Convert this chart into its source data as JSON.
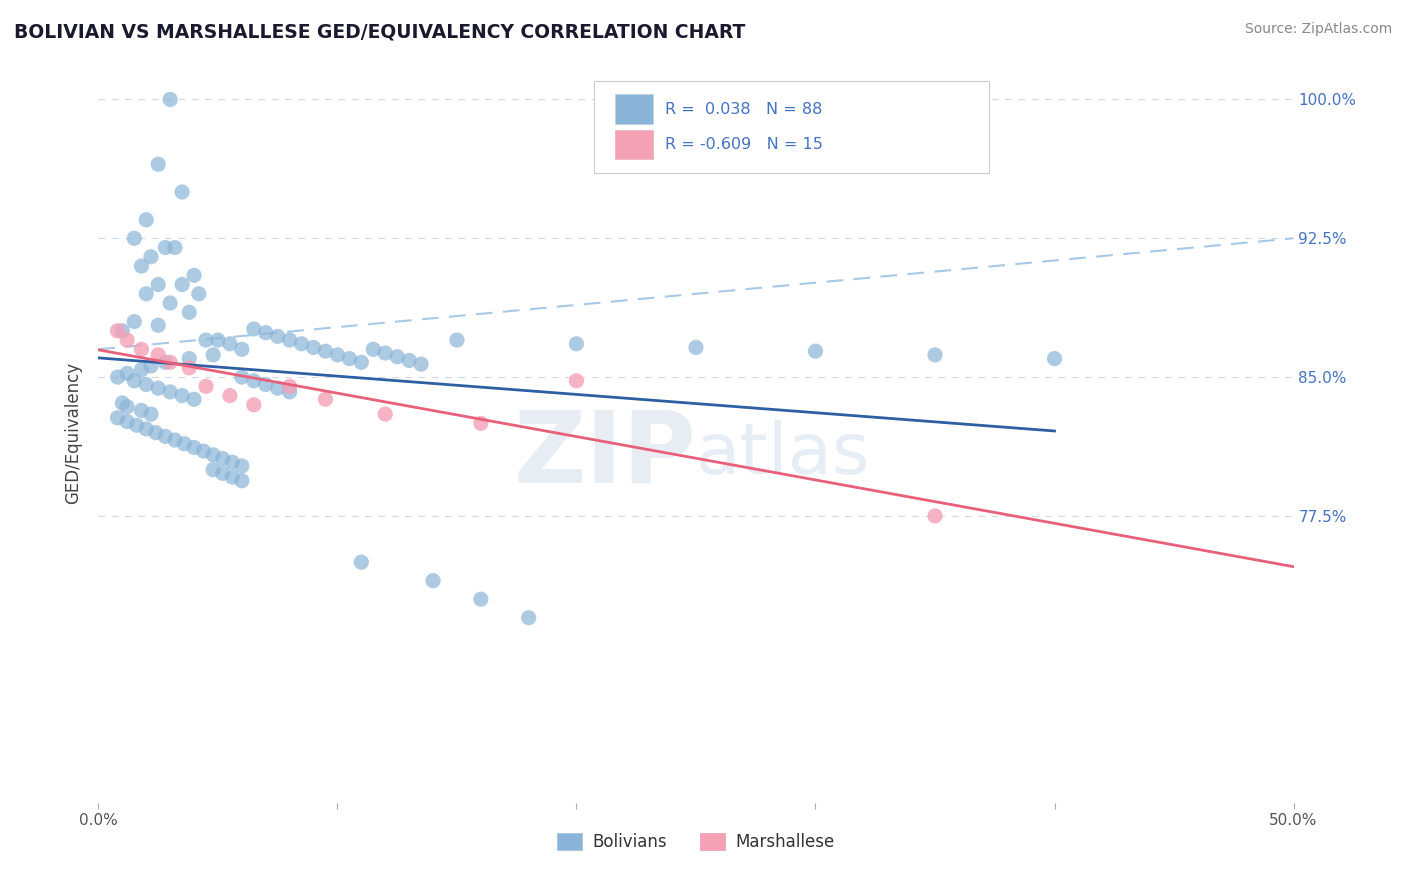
{
  "title": "BOLIVIAN VS MARSHALLESE GED/EQUIVALENCY CORRELATION CHART",
  "source": "Source: ZipAtlas.com",
  "ylabel": "GED/Equivalency",
  "watermark": "ZIPatlas",
  "xlim": [
    0.0,
    0.5
  ],
  "ylim": [
    0.62,
    1.02
  ],
  "xtick_positions": [
    0.0,
    0.1,
    0.2,
    0.3,
    0.4,
    0.5
  ],
  "xticklabels": [
    "0.0%",
    "",
    "",
    "",
    "",
    "50.0%"
  ],
  "ytick_positions": [
    0.775,
    0.85,
    0.925,
    1.0
  ],
  "yticklabels": [
    "77.5%",
    "85.0%",
    "92.5%",
    "100.0%"
  ],
  "bolivian_color": "#8ab4d8",
  "marshallese_color": "#f4a0b5",
  "bolivian_line_color": "#2e5fa3",
  "marshallese_line_color": "#e8607a",
  "dashed_line_color": "#a8c8e8",
  "grid_color": "#d0d8e8",
  "title_color": "#1a1a2e",
  "source_color": "#888888",
  "ylabel_color": "#444444",
  "tick_color": "#555555",
  "right_tick_color": "#4472c4",
  "legend_box_color": "#cccccc",
  "legend_text_color": "#4472c4",
  "R_bolivian": 0.038,
  "N_bolivian": 88,
  "R_marshallese": -0.609,
  "N_marshallese": 15,
  "bolivian_x": [
    0.03,
    0.025,
    0.035,
    0.02,
    0.015,
    0.028,
    0.032,
    0.022,
    0.018,
    0.04,
    0.025,
    0.035,
    0.042,
    0.02,
    0.03,
    0.038,
    0.015,
    0.025,
    0.01,
    0.045,
    0.05,
    0.055,
    0.06,
    0.048,
    0.038,
    0.028,
    0.022,
    0.018,
    0.012,
    0.008,
    0.065,
    0.07,
    0.075,
    0.08,
    0.085,
    0.09,
    0.095,
    0.1,
    0.105,
    0.11,
    0.015,
    0.02,
    0.025,
    0.03,
    0.035,
    0.04,
    0.01,
    0.012,
    0.018,
    0.022,
    0.06,
    0.065,
    0.07,
    0.075,
    0.08,
    0.115,
    0.12,
    0.125,
    0.13,
    0.135,
    0.008,
    0.012,
    0.016,
    0.02,
    0.024,
    0.028,
    0.032,
    0.036,
    0.04,
    0.044,
    0.048,
    0.052,
    0.056,
    0.06,
    0.15,
    0.2,
    0.25,
    0.3,
    0.35,
    0.4,
    0.048,
    0.052,
    0.056,
    0.06,
    0.11,
    0.14,
    0.16,
    0.18
  ],
  "bolivian_y": [
    1.0,
    0.965,
    0.95,
    0.935,
    0.925,
    0.92,
    0.92,
    0.915,
    0.91,
    0.905,
    0.9,
    0.9,
    0.895,
    0.895,
    0.89,
    0.885,
    0.88,
    0.878,
    0.875,
    0.87,
    0.87,
    0.868,
    0.865,
    0.862,
    0.86,
    0.858,
    0.856,
    0.854,
    0.852,
    0.85,
    0.876,
    0.874,
    0.872,
    0.87,
    0.868,
    0.866,
    0.864,
    0.862,
    0.86,
    0.858,
    0.848,
    0.846,
    0.844,
    0.842,
    0.84,
    0.838,
    0.836,
    0.834,
    0.832,
    0.83,
    0.85,
    0.848,
    0.846,
    0.844,
    0.842,
    0.865,
    0.863,
    0.861,
    0.859,
    0.857,
    0.828,
    0.826,
    0.824,
    0.822,
    0.82,
    0.818,
    0.816,
    0.814,
    0.812,
    0.81,
    0.808,
    0.806,
    0.804,
    0.802,
    0.87,
    0.868,
    0.866,
    0.864,
    0.862,
    0.86,
    0.8,
    0.798,
    0.796,
    0.794,
    0.75,
    0.74,
    0.73,
    0.72
  ],
  "marshallese_x": [
    0.008,
    0.012,
    0.018,
    0.025,
    0.03,
    0.038,
    0.045,
    0.055,
    0.065,
    0.08,
    0.095,
    0.12,
    0.16,
    0.2,
    0.35
  ],
  "marshallese_y": [
    0.875,
    0.87,
    0.865,
    0.862,
    0.858,
    0.855,
    0.845,
    0.84,
    0.835,
    0.845,
    0.838,
    0.83,
    0.825,
    0.848,
    0.775
  ]
}
